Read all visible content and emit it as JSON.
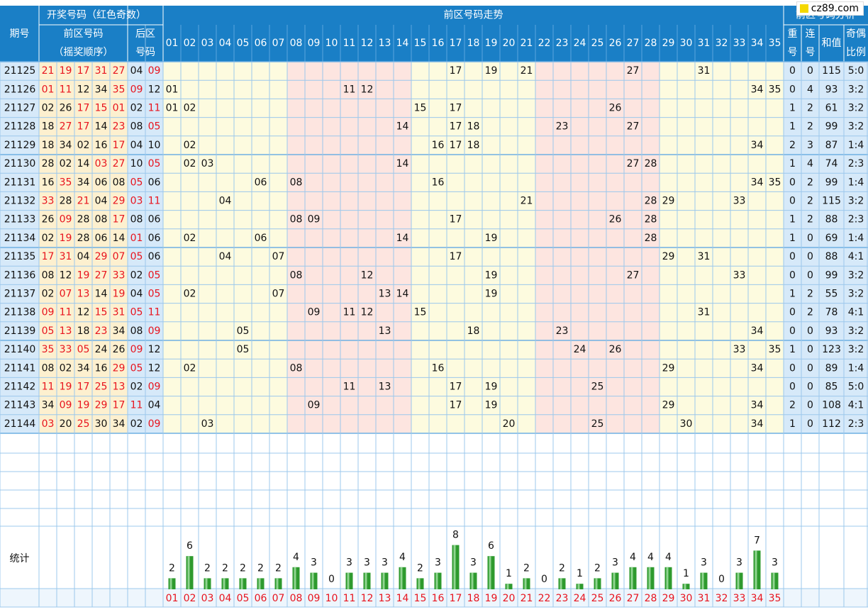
{
  "header": {
    "period": "期号",
    "draw_numbers": "开奖号码（红色奇数）",
    "front": [
      "前区号码",
      "（摇奖顺序）"
    ],
    "back": [
      "后区",
      "号码"
    ],
    "trend": "前区号码走势",
    "analysis": "前区号码分析",
    "analysis_cols": [
      [
        "重",
        "号"
      ],
      [
        "连",
        "号"
      ],
      [
        "和值"
      ],
      [
        "奇偶",
        "比例"
      ]
    ]
  },
  "watermark": "cz89.com",
  "stats_label": "统计",
  "colors": {
    "header_blue": "#1a7fc6",
    "grid_line": "#9cc8ec",
    "odd_red": "#e8141e",
    "zone_yellow": "#fdfbdf",
    "zone_pink": "#fde5e0",
    "front_col_bg": "#fdf0cf",
    "period_bg": "#d6e9f9",
    "bar_green": "#2e9a2e"
  },
  "chart_data": {
    "type": "table",
    "numbers": [
      "01",
      "02",
      "03",
      "04",
      "05",
      "06",
      "07",
      "08",
      "09",
      "10",
      "11",
      "12",
      "13",
      "14",
      "15",
      "16",
      "17",
      "18",
      "19",
      "20",
      "21",
      "22",
      "23",
      "24",
      "25",
      "26",
      "27",
      "28",
      "29",
      "30",
      "31",
      "32",
      "33",
      "34",
      "35"
    ],
    "rows": [
      {
        "period": "21125",
        "front": [
          "21",
          "19",
          "17",
          "31",
          "27"
        ],
        "back": [
          "04",
          "09"
        ],
        "repeat": "0",
        "consec": "0",
        "sum": "115",
        "ratio": "5:0"
      },
      {
        "period": "21126",
        "front": [
          "01",
          "11",
          "12",
          "34",
          "35"
        ],
        "back": [
          "09",
          "12"
        ],
        "repeat": "0",
        "consec": "4",
        "sum": "93",
        "ratio": "3:2"
      },
      {
        "period": "21127",
        "front": [
          "02",
          "26",
          "17",
          "15",
          "01"
        ],
        "back": [
          "02",
          "11"
        ],
        "repeat": "1",
        "consec": "2",
        "sum": "61",
        "ratio": "3:2"
      },
      {
        "period": "21128",
        "front": [
          "18",
          "27",
          "17",
          "14",
          "23"
        ],
        "back": [
          "08",
          "05"
        ],
        "repeat": "1",
        "consec": "2",
        "sum": "99",
        "ratio": "3:2"
      },
      {
        "period": "21129",
        "front": [
          "18",
          "34",
          "02",
          "16",
          "17"
        ],
        "back": [
          "04",
          "10"
        ],
        "repeat": "2",
        "consec": "3",
        "sum": "87",
        "ratio": "1:4"
      },
      {
        "period": "21130",
        "front": [
          "28",
          "02",
          "14",
          "03",
          "27"
        ],
        "back": [
          "10",
          "05"
        ],
        "repeat": "1",
        "consec": "4",
        "sum": "74",
        "ratio": "2:3"
      },
      {
        "period": "21131",
        "front": [
          "16",
          "35",
          "34",
          "06",
          "08"
        ],
        "back": [
          "05",
          "06"
        ],
        "repeat": "0",
        "consec": "2",
        "sum": "99",
        "ratio": "1:4"
      },
      {
        "period": "21132",
        "front": [
          "33",
          "28",
          "21",
          "04",
          "29"
        ],
        "back": [
          "03",
          "11"
        ],
        "repeat": "0",
        "consec": "2",
        "sum": "115",
        "ratio": "3:2"
      },
      {
        "period": "21133",
        "front": [
          "26",
          "09",
          "28",
          "08",
          "17"
        ],
        "back": [
          "08",
          "06"
        ],
        "repeat": "1",
        "consec": "2",
        "sum": "88",
        "ratio": "2:3"
      },
      {
        "period": "21134",
        "front": [
          "02",
          "19",
          "28",
          "06",
          "14"
        ],
        "back": [
          "01",
          "06"
        ],
        "repeat": "1",
        "consec": "0",
        "sum": "69",
        "ratio": "1:4"
      },
      {
        "period": "21135",
        "front": [
          "17",
          "31",
          "04",
          "29",
          "07"
        ],
        "back": [
          "05",
          "06"
        ],
        "repeat": "0",
        "consec": "0",
        "sum": "88",
        "ratio": "4:1"
      },
      {
        "period": "21136",
        "front": [
          "08",
          "12",
          "19",
          "27",
          "33"
        ],
        "back": [
          "02",
          "05"
        ],
        "repeat": "0",
        "consec": "0",
        "sum": "99",
        "ratio": "3:2"
      },
      {
        "period": "21137",
        "front": [
          "02",
          "07",
          "13",
          "14",
          "19"
        ],
        "back": [
          "04",
          "05"
        ],
        "repeat": "1",
        "consec": "2",
        "sum": "55",
        "ratio": "3:2"
      },
      {
        "period": "21138",
        "front": [
          "09",
          "11",
          "12",
          "15",
          "31"
        ],
        "back": [
          "05",
          "11"
        ],
        "repeat": "0",
        "consec": "2",
        "sum": "78",
        "ratio": "4:1"
      },
      {
        "period": "21139",
        "front": [
          "05",
          "13",
          "18",
          "23",
          "34"
        ],
        "back": [
          "08",
          "09"
        ],
        "repeat": "0",
        "consec": "0",
        "sum": "93",
        "ratio": "3:2"
      },
      {
        "period": "21140",
        "front": [
          "35",
          "33",
          "05",
          "24",
          "26"
        ],
        "back": [
          "09",
          "12"
        ],
        "repeat": "1",
        "consec": "0",
        "sum": "123",
        "ratio": "3:2"
      },
      {
        "period": "21141",
        "front": [
          "08",
          "02",
          "34",
          "16",
          "29"
        ],
        "back": [
          "05",
          "12"
        ],
        "repeat": "0",
        "consec": "0",
        "sum": "89",
        "ratio": "1:4"
      },
      {
        "period": "21142",
        "front": [
          "11",
          "19",
          "17",
          "25",
          "13"
        ],
        "back": [
          "02",
          "09"
        ],
        "repeat": "0",
        "consec": "0",
        "sum": "85",
        "ratio": "5:0"
      },
      {
        "period": "21143",
        "front": [
          "34",
          "09",
          "19",
          "29",
          "17"
        ],
        "back": [
          "11",
          "04"
        ],
        "repeat": "2",
        "consec": "0",
        "sum": "108",
        "ratio": "4:1"
      },
      {
        "period": "21144",
        "front": [
          "03",
          "20",
          "25",
          "30",
          "34"
        ],
        "back": [
          "02",
          "09"
        ],
        "repeat": "1",
        "consec": "0",
        "sum": "112",
        "ratio": "2:3"
      }
    ],
    "statistics": [
      2,
      6,
      2,
      2,
      2,
      2,
      2,
      4,
      3,
      0,
      3,
      3,
      3,
      4,
      2,
      3,
      8,
      3,
      6,
      1,
      2,
      0,
      2,
      1,
      2,
      3,
      4,
      4,
      4,
      1,
      3,
      0,
      3,
      7,
      3
    ]
  }
}
